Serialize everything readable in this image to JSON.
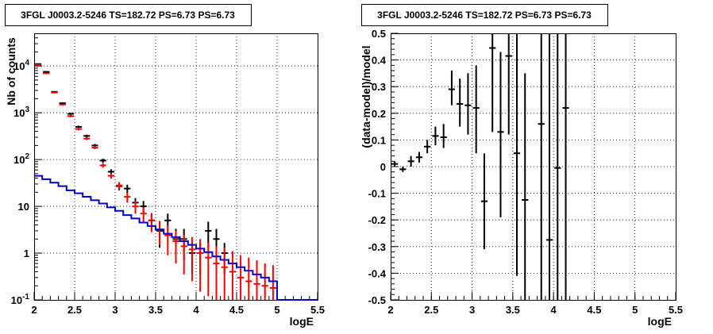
{
  "chart_data": [
    {
      "type": "scatter",
      "title": "3FGL J0003.2-5246 TS=182.72 PS=6.73 PS=6.73",
      "xlabel": "logE",
      "ylabel": "Nb of counts",
      "xlim": [
        2,
        5.5
      ],
      "ylim": [
        0.1,
        50000
      ],
      "yscale": "log",
      "grid": true,
      "xticks": [
        "2",
        "2.5",
        "3",
        "3.5",
        "4",
        "4.5",
        "5",
        "5.5"
      ],
      "yticks": [
        {
          "value": 0.1,
          "label": "10",
          "sup": "-1"
        },
        {
          "value": 1,
          "label": "1",
          "sup": ""
        },
        {
          "value": 10,
          "label": "10",
          "sup": ""
        },
        {
          "value": 100,
          "label": "10",
          "sup": "2"
        },
        {
          "value": 1000,
          "label": "10",
          "sup": "3"
        },
        {
          "value": 10000,
          "label": "10",
          "sup": "4"
        }
      ],
      "colors": {
        "data": "#000000",
        "model": "#ff0000",
        "background": "#0000cc"
      },
      "series": [
        {
          "kind": "points-with-errors",
          "color_key": "data",
          "points": [
            {
              "x": 2.05,
              "y": 11000,
              "lo": 10800,
              "hi": 11200
            },
            {
              "x": 2.15,
              "y": 7500,
              "lo": 7330,
              "hi": 7670
            },
            {
              "x": 2.25,
              "y": 2800,
              "lo": 2700,
              "hi": 2900
            },
            {
              "x": 2.35,
              "y": 1600,
              "lo": 1540,
              "hi": 1660
            },
            {
              "x": 2.45,
              "y": 950,
              "lo": 900,
              "hi": 1000
            },
            {
              "x": 2.55,
              "y": 500,
              "lo": 470,
              "hi": 530
            },
            {
              "x": 2.65,
              "y": 320,
              "lo": 300,
              "hi": 340
            },
            {
              "x": 2.75,
              "y": 200,
              "lo": 185,
              "hi": 215
            },
            {
              "x": 2.85,
              "y": 95,
              "lo": 85,
              "hi": 105
            },
            {
              "x": 2.95,
              "y": 55,
              "lo": 48,
              "hi": 62
            },
            {
              "x": 3.05,
              "y": 27,
              "lo": 22,
              "hi": 32
            },
            {
              "x": 3.15,
              "y": 24,
              "lo": 19,
              "hi": 29
            },
            {
              "x": 3.25,
              "y": 12,
              "lo": 9,
              "hi": 15
            },
            {
              "x": 3.35,
              "y": 10,
              "lo": 7,
              "hi": 13
            },
            {
              "x": 3.45,
              "y": 5,
              "lo": 3,
              "hi": 7
            },
            {
              "x": 3.55,
              "y": 3,
              "lo": 1.3,
              "hi": 4.7
            },
            {
              "x": 3.65,
              "y": 5,
              "lo": 3,
              "hi": 7
            },
            {
              "x": 3.75,
              "y": 2,
              "lo": 0.7,
              "hi": 3.3
            },
            {
              "x": 3.85,
              "y": 2,
              "lo": 0.7,
              "hi": 3.3
            },
            {
              "x": 3.95,
              "y": 1,
              "lo": 0.35,
              "hi": 1.65
            },
            {
              "x": 4.05,
              "y": 1,
              "lo": 0.35,
              "hi": 1.65
            },
            {
              "x": 4.15,
              "y": 3,
              "lo": 1.3,
              "hi": 4.7
            },
            {
              "x": 4.25,
              "y": 2,
              "lo": 0.7,
              "hi": 3.3
            },
            {
              "x": 4.35,
              "y": 1,
              "lo": 0.35,
              "hi": 1.65
            }
          ]
        },
        {
          "kind": "points-with-errors",
          "color_key": "model",
          "points": [
            {
              "x": 2.05,
              "y": 10500,
              "lo": 10300,
              "hi": 10700
            },
            {
              "x": 2.15,
              "y": 7000,
              "lo": 6850,
              "hi": 7150
            },
            {
              "x": 2.25,
              "y": 2700,
              "lo": 2600,
              "hi": 2800
            },
            {
              "x": 2.35,
              "y": 1500,
              "lo": 1440,
              "hi": 1560
            },
            {
              "x": 2.45,
              "y": 850,
              "lo": 800,
              "hi": 900
            },
            {
              "x": 2.55,
              "y": 450,
              "lo": 420,
              "hi": 480
            },
            {
              "x": 2.65,
              "y": 280,
              "lo": 260,
              "hi": 300
            },
            {
              "x": 2.75,
              "y": 180,
              "lo": 167,
              "hi": 193
            },
            {
              "x": 2.85,
              "y": 75,
              "lo": 67,
              "hi": 83
            },
            {
              "x": 2.95,
              "y": 45,
              "lo": 39,
              "hi": 51
            },
            {
              "x": 3.05,
              "y": 28,
              "lo": 23,
              "hi": 33
            },
            {
              "x": 3.15,
              "y": 16,
              "lo": 12,
              "hi": 20
            },
            {
              "x": 3.25,
              "y": 10,
              "lo": 7,
              "hi": 13
            },
            {
              "x": 3.35,
              "y": 7,
              "lo": 4.5,
              "hi": 9.5
            },
            {
              "x": 3.45,
              "y": 5,
              "lo": 2.8,
              "hi": 7.2
            },
            {
              "x": 3.55,
              "y": 3.2,
              "lo": 1.5,
              "hi": 4.9
            },
            {
              "x": 3.65,
              "y": 2.4,
              "lo": 0.9,
              "hi": 3.9
            },
            {
              "x": 3.75,
              "y": 1.8,
              "lo": 0.6,
              "hi": 3.0
            },
            {
              "x": 3.85,
              "y": 1.4,
              "lo": 0.35,
              "hi": 2.5
            },
            {
              "x": 3.95,
              "y": 1.2,
              "lo": 0.25,
              "hi": 2.2
            },
            {
              "x": 4.05,
              "y": 1.0,
              "lo": 0.15,
              "hi": 2.0
            },
            {
              "x": 4.15,
              "y": 0.8,
              "lo": 0.12,
              "hi": 1.7
            },
            {
              "x": 4.25,
              "y": 0.6,
              "lo": 0.1,
              "hi": 1.4
            },
            {
              "x": 4.35,
              "y": 0.5,
              "lo": 0.1,
              "hi": 1.3
            },
            {
              "x": 4.45,
              "y": 0.4,
              "lo": 0.1,
              "hi": 1.1
            },
            {
              "x": 4.55,
              "y": 0.3,
              "lo": 0.1,
              "hi": 0.9
            },
            {
              "x": 4.65,
              "y": 0.25,
              "lo": 0.1,
              "hi": 0.8
            },
            {
              "x": 4.75,
              "y": 0.22,
              "lo": 0.1,
              "hi": 0.7
            },
            {
              "x": 4.85,
              "y": 0.2,
              "lo": 0.1,
              "hi": 0.6
            },
            {
              "x": 4.95,
              "y": 0.18,
              "lo": 0.1,
              "hi": 0.55
            }
          ]
        },
        {
          "kind": "step",
          "color_key": "background",
          "edges": [
            2.0,
            2.1,
            2.2,
            2.3,
            2.4,
            2.5,
            2.6,
            2.7,
            2.8,
            2.9,
            3.0,
            3.1,
            3.2,
            3.3,
            3.4,
            3.5,
            3.6,
            3.7,
            3.8,
            3.9,
            4.0,
            4.1,
            4.2,
            4.3,
            4.4,
            4.5,
            4.6,
            4.7,
            4.8,
            4.9,
            5.0,
            5.1,
            5.2,
            5.3,
            5.4,
            5.5
          ],
          "values": [
            45,
            38,
            32,
            27,
            22,
            19,
            16,
            13.5,
            11.5,
            9.5,
            8,
            6.5,
            5.5,
            4.5,
            3.8,
            3.2,
            2.6,
            2.2,
            1.8,
            1.5,
            1.25,
            1.05,
            0.85,
            0.72,
            0.6,
            0.5,
            0.42,
            0.35,
            0.3,
            0.25,
            0.1,
            0.1,
            0.1,
            0.1,
            0.1
          ]
        }
      ]
    },
    {
      "type": "scatter",
      "title": "3FGL J0003.2-5246 TS=182.72 PS=6.73 PS=6.73",
      "xlabel": "logE",
      "ylabel": "(data-model)/model",
      "xlim": [
        2,
        5.5
      ],
      "ylim": [
        -0.5,
        0.5
      ],
      "yscale": "linear",
      "grid": true,
      "xticks": [
        "2",
        "2.5",
        "3",
        "3.5",
        "4",
        "4.5",
        "5",
        "5.5"
      ],
      "yticks": [
        "-0.5",
        "-0.4",
        "-0.3",
        "-0.2",
        "-0.1",
        "0",
        "0.1",
        "0.2",
        "0.3",
        "0.4",
        "0.5"
      ],
      "colors": {
        "data": "#000000"
      },
      "series": [
        {
          "kind": "points-with-errors",
          "color_key": "data",
          "points": [
            {
              "x": 2.05,
              "y": 0.01,
              "lo": 0.0,
              "hi": 0.02
            },
            {
              "x": 2.15,
              "y": -0.01,
              "lo": -0.02,
              "hi": 0.0
            },
            {
              "x": 2.25,
              "y": 0.02,
              "lo": 0.0,
              "hi": 0.04
            },
            {
              "x": 2.35,
              "y": 0.035,
              "lo": 0.015,
              "hi": 0.055
            },
            {
              "x": 2.45,
              "y": 0.075,
              "lo": 0.05,
              "hi": 0.1
            },
            {
              "x": 2.55,
              "y": 0.115,
              "lo": 0.08,
              "hi": 0.15
            },
            {
              "x": 2.65,
              "y": 0.11,
              "lo": 0.07,
              "hi": 0.16
            },
            {
              "x": 2.75,
              "y": 0.29,
              "lo": 0.23,
              "hi": 0.36
            },
            {
              "x": 2.85,
              "y": 0.235,
              "lo": 0.15,
              "hi": 0.33
            },
            {
              "x": 2.95,
              "y": 0.23,
              "lo": 0.12,
              "hi": 0.35
            },
            {
              "x": 3.05,
              "y": 0.22,
              "lo": 0.05,
              "hi": 0.38
            },
            {
              "x": 3.15,
              "y": -0.13,
              "lo": -0.31,
              "hi": 0.05
            },
            {
              "x": 3.25,
              "y": 0.445,
              "lo": 0.13,
              "hi": 0.5
            },
            {
              "x": 3.35,
              "y": 0.13,
              "lo": -0.19,
              "hi": 0.43
            },
            {
              "x": 3.45,
              "y": 0.415,
              "lo": 0.12,
              "hi": 0.5
            },
            {
              "x": 3.55,
              "y": 0.05,
              "lo": -0.41,
              "hi": 0.5
            },
            {
              "x": 3.65,
              "y": -0.125,
              "lo": -0.5,
              "hi": 0.35
            },
            {
              "x": 3.85,
              "y": 0.16,
              "lo": -0.5,
              "hi": 0.5
            },
            {
              "x": 3.95,
              "y": -0.275,
              "lo": -0.5,
              "hi": 0.5
            },
            {
              "x": 4.05,
              "y": -0.005,
              "lo": -0.5,
              "hi": 0.5
            },
            {
              "x": 4.15,
              "y": 0.22,
              "lo": -0.5,
              "hi": 0.5
            }
          ]
        }
      ]
    }
  ]
}
